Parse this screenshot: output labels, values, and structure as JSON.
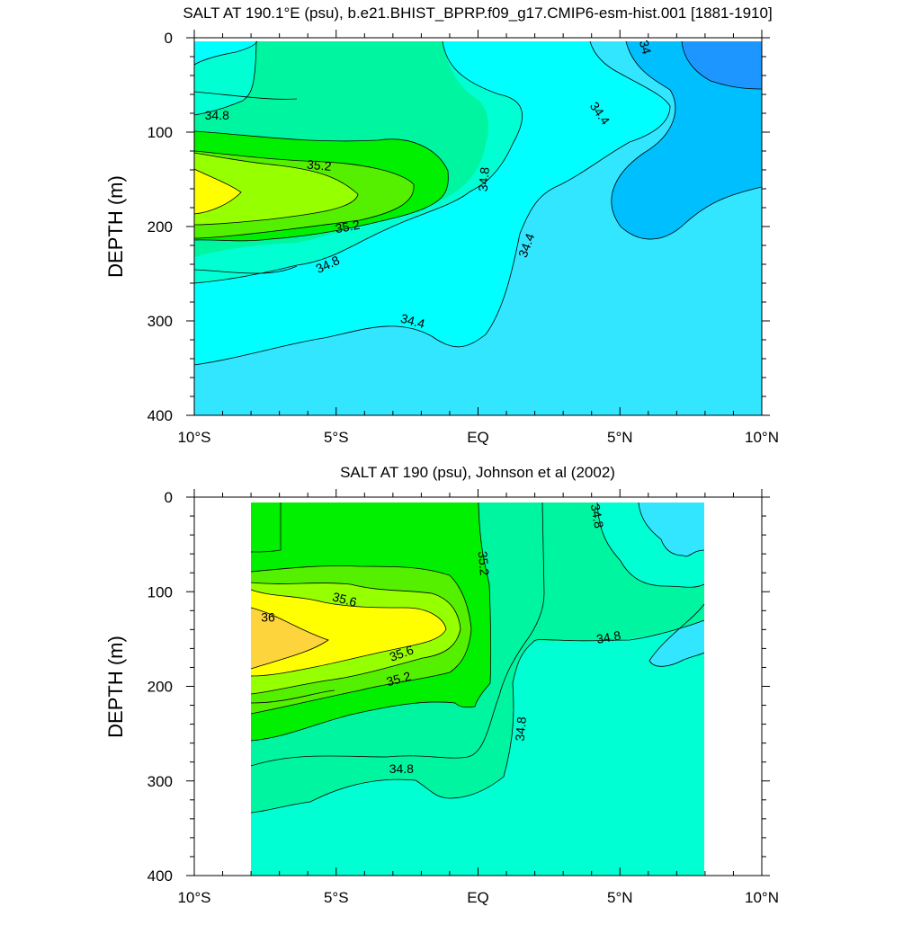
{
  "chart_data": [
    {
      "type": "contour",
      "title": "SALT AT 190.1°E (psu), b.e21.BHIST_BPRP.f09_g17.CMIP6-esm-hist.001 [1881-1910]",
      "ylabel": "DEPTH (m)",
      "xlim": [
        -10,
        10
      ],
      "ylim": [
        400,
        0
      ],
      "x_ticks": [
        {
          "value": -10,
          "label": "10°S"
        },
        {
          "value": -5,
          "label": "5°S"
        },
        {
          "value": 0,
          "label": "EQ"
        },
        {
          "value": 5,
          "label": "5°N"
        },
        {
          "value": 10,
          "label": "10°N"
        }
      ],
      "y_ticks": [
        0,
        100,
        200,
        300,
        400
      ],
      "data_xlim": [
        -10,
        10
      ],
      "contour_labels": [
        {
          "text": "34",
          "x": 5.9,
          "depth": 10,
          "angle": 75
        },
        {
          "text": "34.4",
          "x": 4.3,
          "depth": 80,
          "angle": 55
        },
        {
          "text": "34.8",
          "x": -9.2,
          "depth": 82,
          "angle": 0
        },
        {
          "text": "35.2",
          "x": -5.6,
          "depth": 135,
          "angle": 5
        },
        {
          "text": "34.8",
          "x": 0.2,
          "depth": 150,
          "angle": -85
        },
        {
          "text": "35.2",
          "x": -4.6,
          "depth": 200,
          "angle": -10
        },
        {
          "text": "34.4",
          "x": 1.7,
          "depth": 220,
          "angle": -70
        },
        {
          "text": "34.8",
          "x": -5.3,
          "depth": 240,
          "angle": -25
        },
        {
          "text": "34.4",
          "x": -2.3,
          "depth": 300,
          "angle": 15
        }
      ]
    },
    {
      "type": "contour",
      "title": "SALT AT 190 (psu), Johnson et al (2002)",
      "ylabel": "DEPTH (m)",
      "xlim": [
        -10,
        10
      ],
      "ylim": [
        400,
        0
      ],
      "x_ticks": [
        {
          "value": -10,
          "label": "10°S"
        },
        {
          "value": -5,
          "label": "5°S"
        },
        {
          "value": 0,
          "label": "EQ"
        },
        {
          "value": 5,
          "label": "5°N"
        },
        {
          "value": 10,
          "label": "10°N"
        }
      ],
      "y_ticks": [
        0,
        100,
        200,
        300,
        400
      ],
      "data_xlim": [
        -8,
        8
      ],
      "contour_labels": [
        {
          "text": "34.8",
          "x": 4.2,
          "depth": 20,
          "angle": 80
        },
        {
          "text": "35.2",
          "x": 0.2,
          "depth": 70,
          "angle": 85
        },
        {
          "text": "35.6",
          "x": -4.7,
          "depth": 108,
          "angle": 15
        },
        {
          "text": "36",
          "x": -7.4,
          "depth": 127,
          "angle": 0
        },
        {
          "text": "34.8",
          "x": 4.6,
          "depth": 148,
          "angle": -10
        },
        {
          "text": "35.6",
          "x": -2.7,
          "depth": 165,
          "angle": -20
        },
        {
          "text": "35.2",
          "x": -2.8,
          "depth": 192,
          "angle": -15
        },
        {
          "text": "34.8",
          "x": 1.5,
          "depth": 245,
          "angle": -85
        },
        {
          "text": "34.8",
          "x": -2.7,
          "depth": 287,
          "angle": 0
        }
      ]
    }
  ],
  "colors": {
    "s34": "#1e96ff",
    "s34_2": "#00bfff",
    "s34_4": "#33e6ff",
    "s34_6": "#00ffff",
    "s34_8": "#00ffd2",
    "s35": "#00f5a0",
    "s35_2": "#00f000",
    "s35_4": "#55f000",
    "s35_6": "#96ff00",
    "s35_8": "#ffff00",
    "s36": "#fdd43c",
    "line": "#000000"
  }
}
